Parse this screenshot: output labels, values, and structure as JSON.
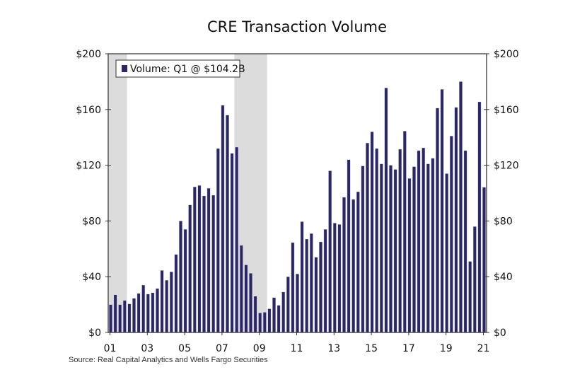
{
  "chart_data": {
    "type": "bar",
    "title": "CRE Transaction Volume",
    "xlabel": "",
    "ylabel": "",
    "y_unit_prefix": "$",
    "ylim": [
      0,
      200
    ],
    "y_ticks": [
      0,
      40,
      80,
      120,
      160,
      200
    ],
    "y_tick_labels": [
      "$0",
      "$40",
      "$80",
      "$120",
      "$160",
      "$200"
    ],
    "x_tick_labels": [
      "01",
      "03",
      "05",
      "07",
      "09",
      "11",
      "13",
      "15",
      "17",
      "19",
      "21"
    ],
    "x_tick_years": [
      2001,
      2003,
      2005,
      2007,
      2009,
      2011,
      2013,
      2015,
      2017,
      2019,
      2021
    ],
    "x_start": "2001Q1",
    "x_end": "2021Q1",
    "frequency": "quarterly",
    "grid": false,
    "legend": {
      "position": "top-left",
      "entries": [
        "Volume: Q1 @ $104.2B"
      ]
    },
    "recessions": [
      {
        "start": "2001Q1",
        "end": "2001Q4"
      },
      {
        "start": "2007Q4",
        "end": "2009Q2"
      }
    ],
    "series": [
      {
        "name": "Volume",
        "values": [
          20,
          27,
          20,
          23,
          20.5,
          24.5,
          28,
          34,
          27.5,
          28.5,
          31.5,
          44.5,
          37.5,
          43.5,
          56,
          80,
          74,
          91.5,
          104.5,
          105.5,
          98,
          103.5,
          98.5,
          132,
          163,
          156,
          128.5,
          133,
          62.5,
          48.5,
          42.5,
          26,
          14,
          14.5,
          17,
          25,
          19.5,
          29,
          40,
          64.5,
          42,
          79.5,
          67,
          71,
          54,
          65,
          74,
          116,
          78.5,
          77.5,
          97,
          124,
          95.5,
          101,
          119.5,
          136,
          144,
          132,
          121,
          175.5,
          120,
          117,
          131.5,
          144.5,
          110.5,
          119,
          130.5,
          132.5,
          121,
          125,
          161,
          174.5,
          114,
          141,
          161.5,
          180,
          130.5,
          51,
          76,
          165.5,
          104.2
        ]
      }
    ],
    "source": "Source: Real Capital Analytics and Wells Fargo Securities"
  },
  "colors": {
    "bar": "#2b2766",
    "recession": "#dcdcdc",
    "axis": "#333333"
  }
}
